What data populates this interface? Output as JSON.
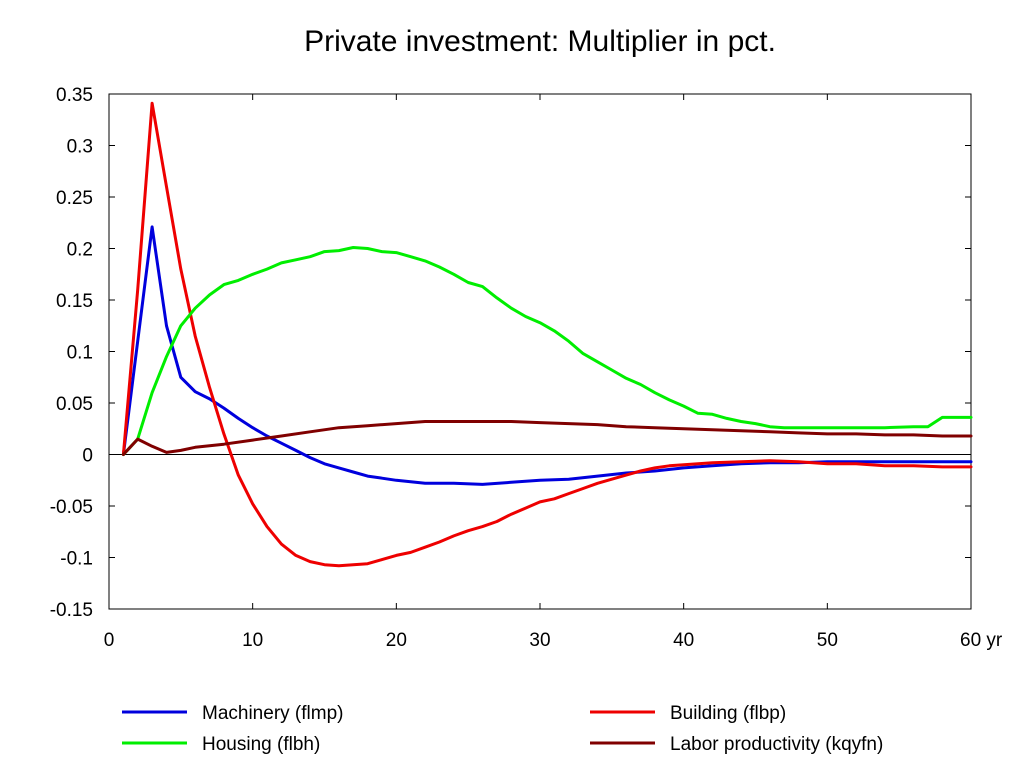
{
  "chart_data": {
    "type": "line",
    "title": "Private investment: Multiplier in pct.",
    "xlabel": "",
    "ylabel": "",
    "x_unit_label": "yr",
    "xlim": [
      0,
      60
    ],
    "ylim": [
      -0.15,
      0.35
    ],
    "xticks": [
      0,
      10,
      20,
      30,
      40,
      50,
      60
    ],
    "xtick_labels": [
      "0",
      "10",
      "20",
      "30",
      "40",
      "50",
      "60 yr"
    ],
    "yticks": [
      -0.15,
      -0.1,
      -0.05,
      0,
      0.05,
      0.1,
      0.15,
      0.2,
      0.25,
      0.3,
      0.35
    ],
    "ytick_labels": [
      "-0.15",
      "-0.1",
      "-0.05",
      "0",
      "0.05",
      "0.1",
      "0.15",
      "0.2",
      "0.25",
      "0.3",
      "0.35"
    ],
    "grid": false,
    "zero_line": true,
    "legend_position": "bottom",
    "series": [
      {
        "name": "Machinery (flmp)",
        "color": "#0000dd",
        "points": [
          [
            1,
            0
          ],
          [
            2,
            0.11
          ],
          [
            3,
            0.221
          ],
          [
            4,
            0.125
          ],
          [
            5,
            0.075
          ],
          [
            6,
            0.061
          ],
          [
            7,
            0.054
          ],
          [
            8,
            0.045
          ],
          [
            9,
            0.035
          ],
          [
            10,
            0.026
          ],
          [
            11,
            0.018
          ],
          [
            12,
            0.011
          ],
          [
            13,
            0.004
          ],
          [
            14,
            -0.003
          ],
          [
            15,
            -0.009
          ],
          [
            16,
            -0.013
          ],
          [
            17,
            -0.017
          ],
          [
            18,
            -0.021
          ],
          [
            19,
            -0.023
          ],
          [
            20,
            -0.025
          ],
          [
            22,
            -0.028
          ],
          [
            24,
            -0.028
          ],
          [
            26,
            -0.029
          ],
          [
            28,
            -0.027
          ],
          [
            30,
            -0.025
          ],
          [
            32,
            -0.024
          ],
          [
            34,
            -0.021
          ],
          [
            36,
            -0.018
          ],
          [
            38,
            -0.016
          ],
          [
            40,
            -0.013
          ],
          [
            42,
            -0.011
          ],
          [
            44,
            -0.009
          ],
          [
            46,
            -0.008
          ],
          [
            48,
            -0.008
          ],
          [
            50,
            -0.007
          ],
          [
            52,
            -0.007
          ],
          [
            54,
            -0.007
          ],
          [
            56,
            -0.007
          ],
          [
            58,
            -0.007
          ],
          [
            60,
            -0.007
          ]
        ]
      },
      {
        "name": "Building (flbp)",
        "color": "#ee0000",
        "points": [
          [
            1,
            0
          ],
          [
            2,
            0.16
          ],
          [
            3,
            0.341
          ],
          [
            4,
            0.26
          ],
          [
            5,
            0.18
          ],
          [
            6,
            0.115
          ],
          [
            7,
            0.065
          ],
          [
            8,
            0.02
          ],
          [
            9,
            -0.02
          ],
          [
            10,
            -0.048
          ],
          [
            11,
            -0.07
          ],
          [
            12,
            -0.087
          ],
          [
            13,
            -0.098
          ],
          [
            14,
            -0.104
          ],
          [
            15,
            -0.107
          ],
          [
            16,
            -0.108
          ],
          [
            17,
            -0.107
          ],
          [
            18,
            -0.106
          ],
          [
            19,
            -0.102
          ],
          [
            20,
            -0.098
          ],
          [
            21,
            -0.095
          ],
          [
            22,
            -0.09
          ],
          [
            23,
            -0.085
          ],
          [
            24,
            -0.079
          ],
          [
            25,
            -0.074
          ],
          [
            26,
            -0.07
          ],
          [
            27,
            -0.065
          ],
          [
            28,
            -0.058
          ],
          [
            29,
            -0.052
          ],
          [
            30,
            -0.046
          ],
          [
            31,
            -0.043
          ],
          [
            32,
            -0.038
          ],
          [
            33,
            -0.033
          ],
          [
            34,
            -0.028
          ],
          [
            35,
            -0.024
          ],
          [
            36,
            -0.02
          ],
          [
            37,
            -0.016
          ],
          [
            38,
            -0.013
          ],
          [
            39,
            -0.011
          ],
          [
            40,
            -0.01
          ],
          [
            42,
            -0.008
          ],
          [
            44,
            -0.007
          ],
          [
            46,
            -0.006
          ],
          [
            48,
            -0.007
          ],
          [
            50,
            -0.009
          ],
          [
            52,
            -0.009
          ],
          [
            54,
            -0.011
          ],
          [
            56,
            -0.011
          ],
          [
            58,
            -0.012
          ],
          [
            60,
            -0.012
          ]
        ]
      },
      {
        "name": "Housing (flbh)",
        "color": "#00ee00",
        "points": [
          [
            1,
            0
          ],
          [
            2,
            0.015
          ],
          [
            3,
            0.06
          ],
          [
            4,
            0.095
          ],
          [
            5,
            0.125
          ],
          [
            6,
            0.142
          ],
          [
            7,
            0.155
          ],
          [
            8,
            0.165
          ],
          [
            9,
            0.169
          ],
          [
            10,
            0.175
          ],
          [
            11,
            0.18
          ],
          [
            12,
            0.186
          ],
          [
            13,
            0.189
          ],
          [
            14,
            0.192
          ],
          [
            15,
            0.197
          ],
          [
            16,
            0.198
          ],
          [
            17,
            0.201
          ],
          [
            18,
            0.2
          ],
          [
            19,
            0.197
          ],
          [
            20,
            0.196
          ],
          [
            21,
            0.192
          ],
          [
            22,
            0.188
          ],
          [
            23,
            0.182
          ],
          [
            24,
            0.175
          ],
          [
            25,
            0.167
          ],
          [
            26,
            0.163
          ],
          [
            27,
            0.152
          ],
          [
            28,
            0.142
          ],
          [
            29,
            0.134
          ],
          [
            30,
            0.128
          ],
          [
            31,
            0.12
          ],
          [
            32,
            0.11
          ],
          [
            33,
            0.098
          ],
          [
            34,
            0.09
          ],
          [
            35,
            0.082
          ],
          [
            36,
            0.074
          ],
          [
            37,
            0.068
          ],
          [
            38,
            0.06
          ],
          [
            39,
            0.053
          ],
          [
            40,
            0.047
          ],
          [
            41,
            0.04
          ],
          [
            42,
            0.039
          ],
          [
            43,
            0.035
          ],
          [
            44,
            0.032
          ],
          [
            45,
            0.03
          ],
          [
            46,
            0.027
          ],
          [
            47,
            0.026
          ],
          [
            48,
            0.026
          ],
          [
            50,
            0.026
          ],
          [
            52,
            0.026
          ],
          [
            54,
            0.026
          ],
          [
            56,
            0.027
          ],
          [
            57,
            0.027
          ],
          [
            58,
            0.036
          ],
          [
            60,
            0.036
          ]
        ]
      },
      {
        "name": "Labor productivity (kqyfn)",
        "color": "#800000",
        "points": [
          [
            1,
            0
          ],
          [
            2,
            0.015
          ],
          [
            3,
            0.008
          ],
          [
            4,
            0.002
          ],
          [
            5,
            0.004
          ],
          [
            6,
            0.007
          ],
          [
            8,
            0.01
          ],
          [
            10,
            0.014
          ],
          [
            12,
            0.018
          ],
          [
            14,
            0.022
          ],
          [
            16,
            0.026
          ],
          [
            18,
            0.028
          ],
          [
            20,
            0.03
          ],
          [
            22,
            0.032
          ],
          [
            24,
            0.032
          ],
          [
            26,
            0.032
          ],
          [
            28,
            0.032
          ],
          [
            30,
            0.031
          ],
          [
            32,
            0.03
          ],
          [
            34,
            0.029
          ],
          [
            36,
            0.027
          ],
          [
            38,
            0.026
          ],
          [
            40,
            0.025
          ],
          [
            42,
            0.024
          ],
          [
            44,
            0.023
          ],
          [
            46,
            0.022
          ],
          [
            48,
            0.021
          ],
          [
            50,
            0.02
          ],
          [
            52,
            0.02
          ],
          [
            54,
            0.019
          ],
          [
            56,
            0.019
          ],
          [
            58,
            0.018
          ],
          [
            60,
            0.018
          ]
        ]
      }
    ]
  }
}
